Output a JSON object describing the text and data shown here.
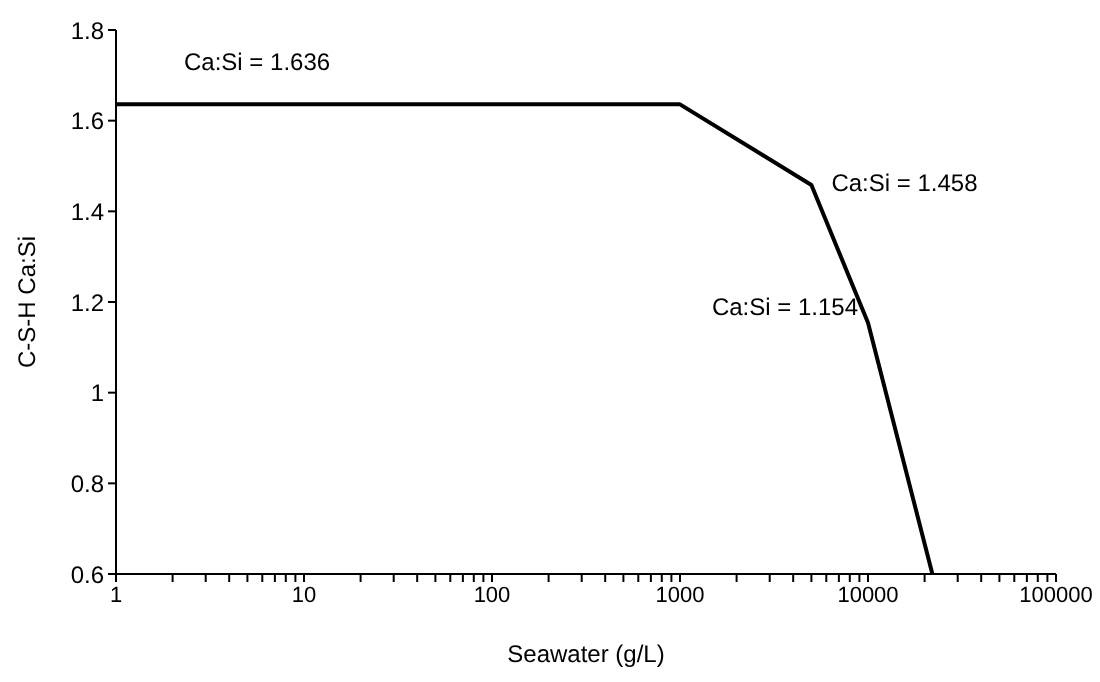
{
  "chart_data": {
    "type": "line",
    "xlabel": "Seawater (g/L)",
    "ylabel": "C-S-H Ca:Si",
    "log": "x",
    "grid": false,
    "marker": "none",
    "line_style": "solid",
    "x": [
      1,
      1000,
      5000,
      10000,
      22000
    ],
    "series": [
      {
        "color": "#000000",
        "values": [
          1.636,
          1.636,
          1.458,
          1.154,
          0.6
        ]
      }
    ],
    "xlim": [
      1,
      100000
    ],
    "ylim": [
      0.6,
      1.8
    ],
    "xticks": [
      1,
      {
        "value": 2,
        "label": null
      },
      {
        "value": 3,
        "label": null
      },
      {
        "value": 4,
        "label": null
      },
      {
        "value": 5,
        "label": null
      },
      {
        "value": 6,
        "label": null
      },
      {
        "value": 7,
        "label": null
      },
      {
        "value": 8,
        "label": null
      },
      {
        "value": 9,
        "label": null
      },
      10,
      {
        "value": 20,
        "label": null
      },
      {
        "value": 30,
        "label": null
      },
      {
        "value": 40,
        "label": null
      },
      {
        "value": 50,
        "label": null
      },
      {
        "value": 60,
        "label": null
      },
      {
        "value": 70,
        "label": null
      },
      {
        "value": 80,
        "label": null
      },
      {
        "value": 90,
        "label": null
      },
      100,
      {
        "value": 200,
        "label": null
      },
      {
        "value": 300,
        "label": null
      },
      {
        "value": 400,
        "label": null
      },
      {
        "value": 500,
        "label": null
      },
      {
        "value": 600,
        "label": null
      },
      {
        "value": 700,
        "label": null
      },
      {
        "value": 800,
        "label": null
      },
      {
        "value": 900,
        "label": null
      },
      1000,
      {
        "value": 2000,
        "label": null
      },
      {
        "value": 3000,
        "label": null
      },
      {
        "value": 4000,
        "label": null
      },
      {
        "value": 5000,
        "label": null
      },
      {
        "value": 6000,
        "label": null
      },
      {
        "value": 7000,
        "label": null
      },
      {
        "value": 8000,
        "label": null
      },
      {
        "value": 9000,
        "label": null
      },
      10000,
      {
        "value": 20000,
        "label": null
      },
      {
        "value": 30000,
        "label": null
      },
      {
        "value": 40000,
        "label": null
      },
      {
        "value": 50000,
        "label": null
      },
      {
        "value": 60000,
        "label": null
      },
      {
        "value": 70000,
        "label": null
      },
      {
        "value": 80000,
        "label": null
      },
      {
        "value": 90000,
        "label": null
      },
      100000
    ],
    "yticks": [
      0.6,
      0.8,
      1,
      1.2,
      1.4,
      1.6,
      1.8
    ],
    "annotations": [
      "Ca:Si = 1.636",
      {
        "text": "Ca:Si = 1.458",
        "x": 5000,
        "y": 1.458
      },
      {
        "text": "Ca:Si = 1.154",
        "x": 10000,
        "y": 1.154
      }
    ],
    "legend": false
  }
}
